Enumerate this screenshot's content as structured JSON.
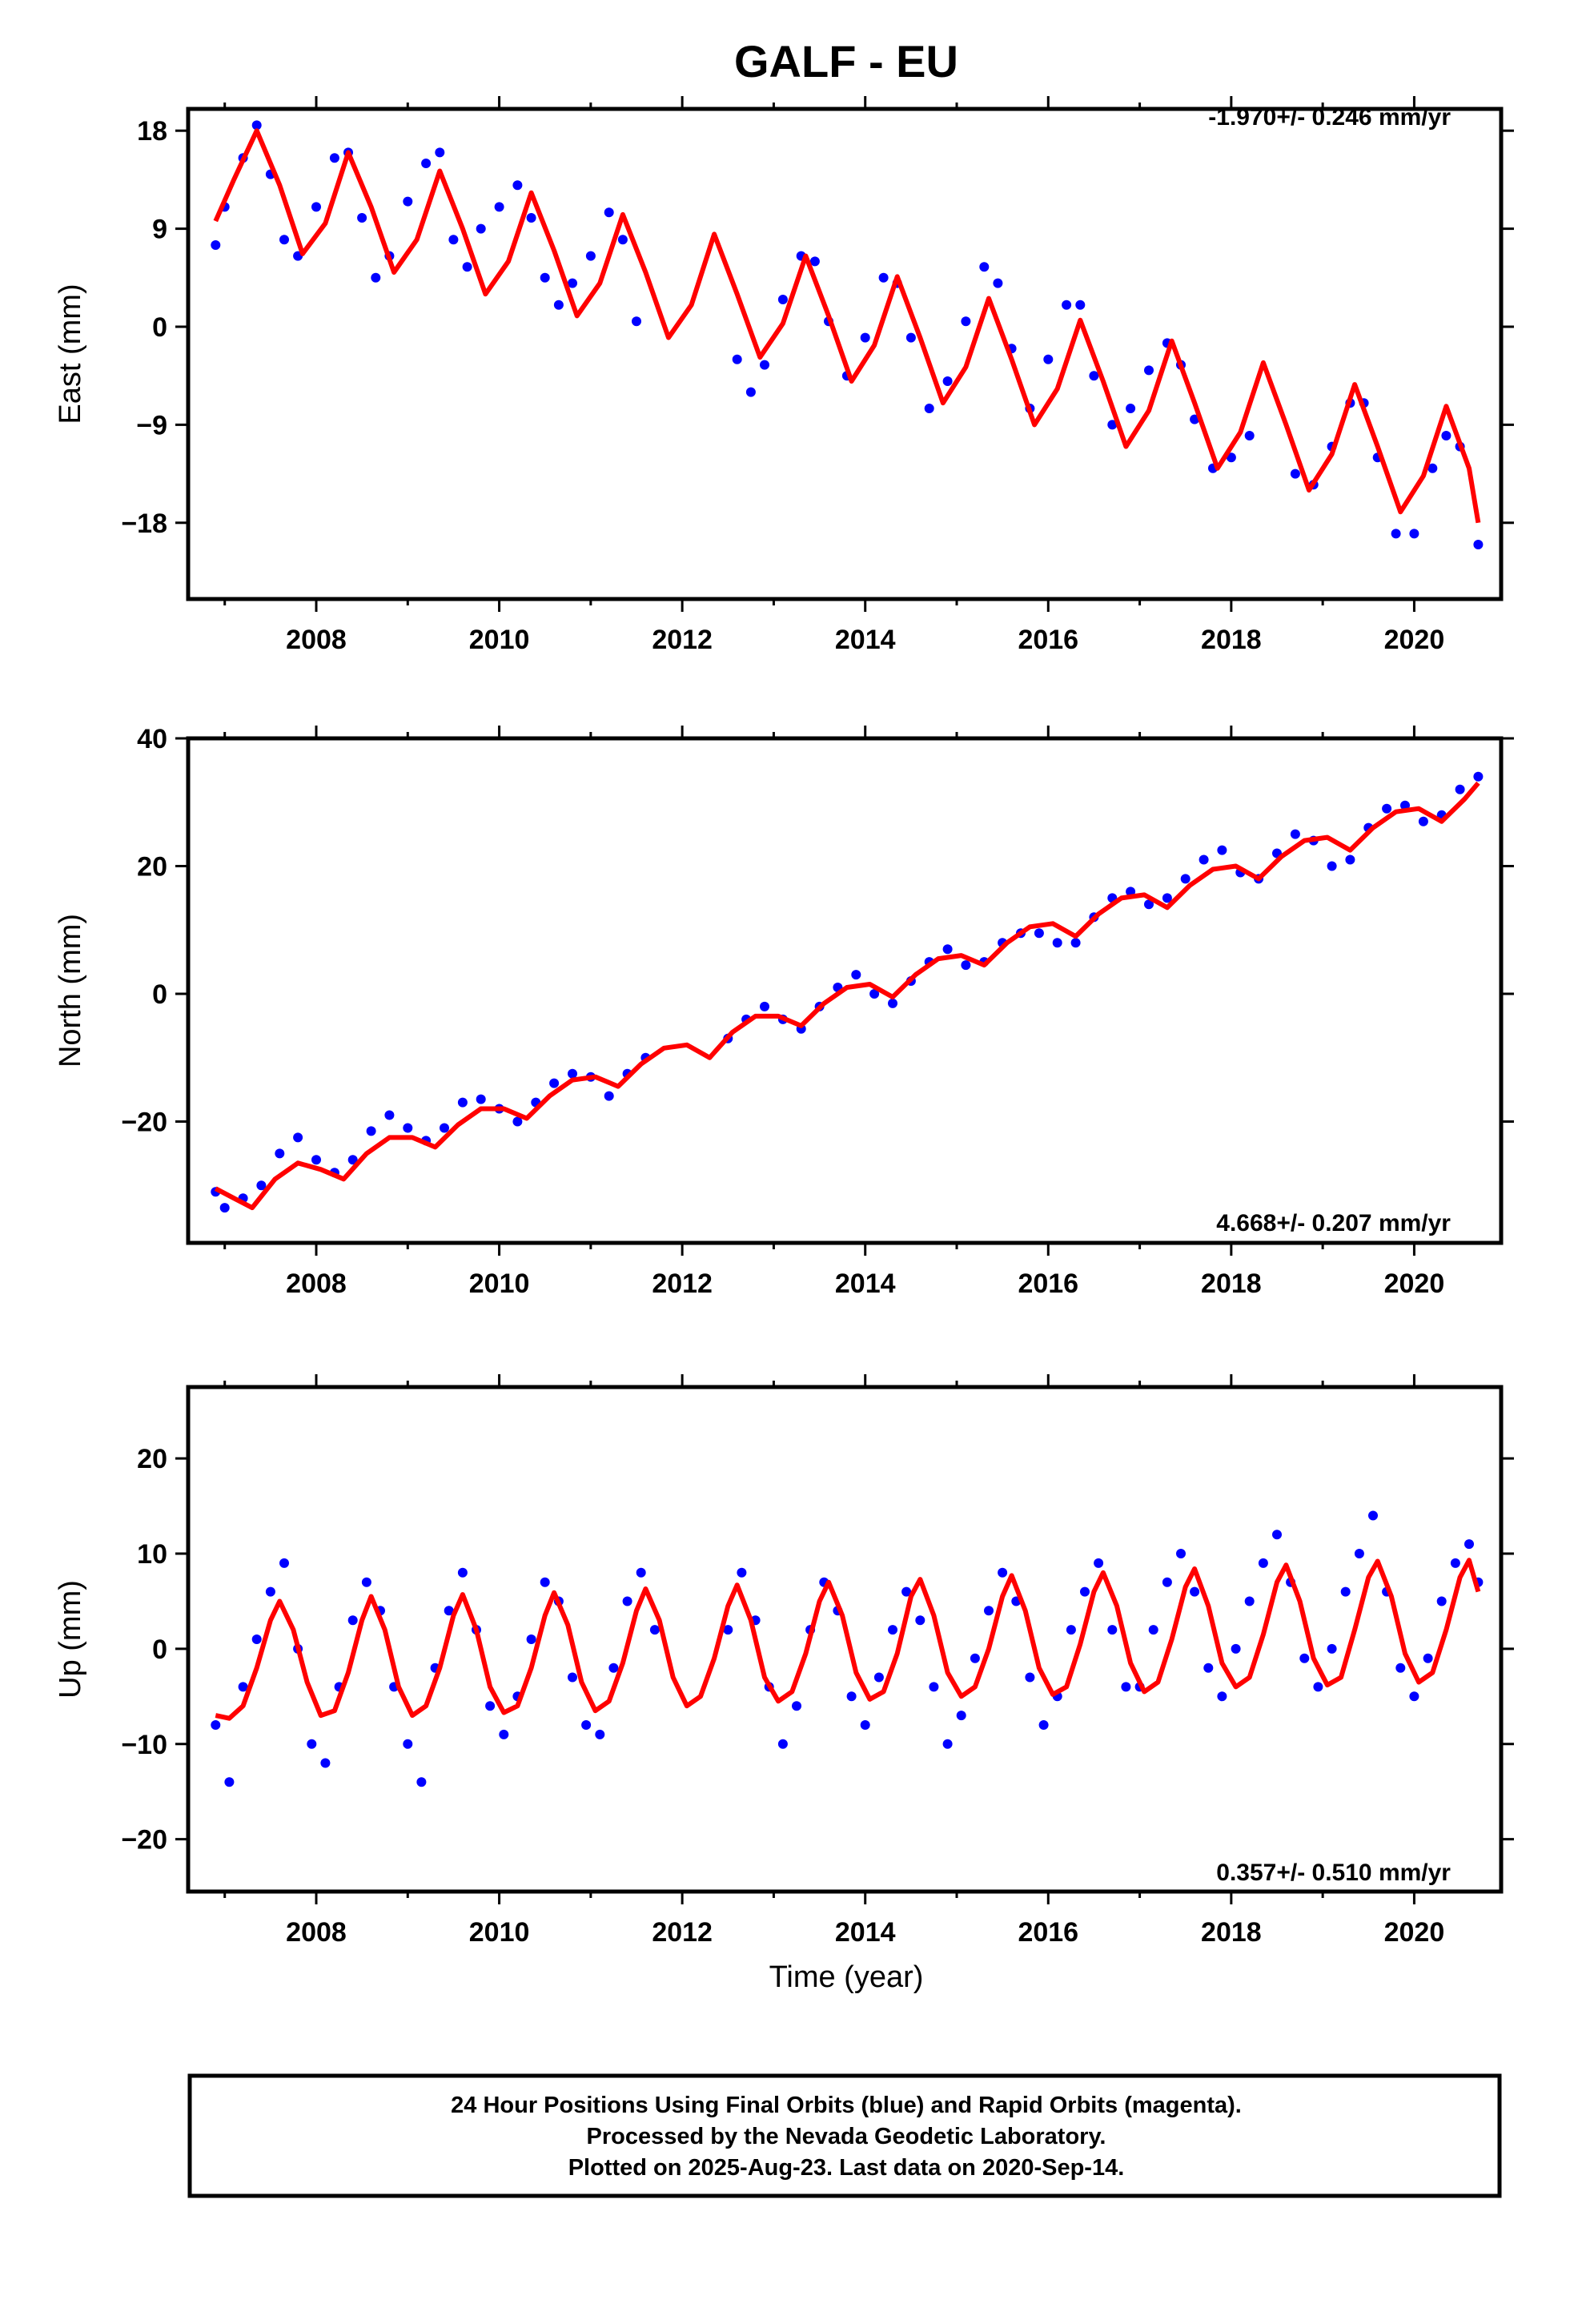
{
  "title": "GALF - EU",
  "chart_data": [
    {
      "type": "scatter",
      "panel": "east",
      "ylabel": "East (mm)",
      "xlabel": "",
      "xlim": [
        2006.6,
        2020.95
      ],
      "ylim": [
        -25,
        20
      ],
      "xticks": [
        2008,
        2010,
        2012,
        2014,
        2016,
        2018,
        2020
      ],
      "yticks": [
        18,
        9,
        0,
        -9,
        -18
      ],
      "rate_label": "-1.970+/- 0.246 mm/yr",
      "rate_position": "top-right",
      "series": [
        {
          "color": "#0000ff",
          "x": [
            2006.9,
            2007.0,
            2007.2,
            2007.35,
            2007.5,
            2007.65,
            2007.8,
            2008.0,
            2008.2,
            2008.35,
            2008.5,
            2008.65,
            2008.8,
            2009.0,
            2009.2,
            2009.35,
            2009.5,
            2009.65,
            2009.8,
            2010.0,
            2010.2,
            2010.35,
            2010.5,
            2010.65,
            2010.8,
            2011.0,
            2011.2,
            2011.35,
            2011.5,
            2012.6,
            2012.75,
            2012.9,
            2013.1,
            2013.3,
            2013.45,
            2013.6,
            2013.8,
            2014.0,
            2014.2,
            2014.35,
            2014.5,
            2014.7,
            2014.9,
            2015.1,
            2015.3,
            2015.45,
            2015.6,
            2015.8,
            2016.0,
            2016.2,
            2016.35,
            2016.5,
            2016.7,
            2016.9,
            2017.1,
            2017.3,
            2017.45,
            2017.6,
            2017.8,
            2018.0,
            2018.2,
            2018.7,
            2018.9,
            2019.1,
            2019.3,
            2019.45,
            2019.6,
            2019.8,
            2020.0,
            2020.2,
            2020.35,
            2020.5,
            2020.7
          ],
          "y": [
            7.5,
            11.0,
            15.5,
            18.5,
            14.0,
            8.0,
            6.5,
            11.0,
            15.5,
            16.0,
            10.0,
            4.5,
            6.5,
            11.5,
            15.0,
            16.0,
            8.0,
            5.5,
            9.0,
            11.0,
            13.0,
            10.0,
            4.5,
            2.0,
            4.0,
            6.5,
            10.5,
            8.0,
            0.5,
            -3.0,
            -6.0,
            -3.5,
            2.5,
            6.5,
            6.0,
            0.5,
            -4.5,
            -1.0,
            4.5,
            4.0,
            -1.0,
            -7.5,
            -5.0,
            0.5,
            5.5,
            4.0,
            -2.0,
            -7.5,
            -3.0,
            2.0,
            2.0,
            -4.5,
            -9.0,
            -7.5,
            -4.0,
            -1.5,
            -3.5,
            -8.5,
            -13.0,
            -12.0,
            -10.0,
            -13.5,
            -14.5,
            -11.0,
            -7.0,
            -7.0,
            -12.0,
            -19.0,
            -19.0,
            -13.0,
            -10.0,
            -11.0,
            -20.0
          ]
        },
        {
          "color": "#ff0000",
          "x": [
            2006.9,
            2007.1,
            2007.35,
            2007.6,
            2007.85,
            2008.1,
            2008.35,
            2008.6,
            2008.85,
            2009.1,
            2009.35,
            2009.6,
            2009.85,
            2010.1,
            2010.35,
            2010.6,
            2010.85,
            2011.1,
            2011.35,
            2011.6,
            2011.85,
            2012.1,
            2012.35,
            2012.6,
            2012.85,
            2013.1,
            2013.35,
            2013.6,
            2013.85,
            2014.1,
            2014.35,
            2014.6,
            2014.85,
            2015.1,
            2015.35,
            2015.6,
            2015.85,
            2016.1,
            2016.35,
            2016.6,
            2016.85,
            2017.1,
            2017.35,
            2017.6,
            2017.85,
            2018.1,
            2018.35,
            2018.6,
            2018.85,
            2019.1,
            2019.35,
            2019.6,
            2019.85,
            2020.1,
            2020.35,
            2020.6,
            2020.7
          ],
          "y": [
            9.7,
            13.5,
            18.0,
            13.0,
            6.7,
            9.5,
            16.0,
            11.0,
            5.0,
            8.0,
            14.3,
            9.0,
            3.0,
            6.0,
            12.3,
            7.0,
            1.0,
            4.0,
            10.3,
            5.0,
            -1.0,
            2.0,
            8.5,
            3.0,
            -2.8,
            0.3,
            6.5,
            1.0,
            -5.0,
            -1.7,
            4.6,
            -1.0,
            -7.0,
            -3.7,
            2.6,
            -3.0,
            -9.0,
            -5.7,
            0.6,
            -5.0,
            -11.0,
            -7.7,
            -1.3,
            -7.0,
            -13.0,
            -9.7,
            -3.3,
            -9.0,
            -15.0,
            -11.7,
            -5.3,
            -11.0,
            -17.0,
            -13.7,
            -7.3,
            -13.0,
            -18.0
          ]
        }
      ]
    },
    {
      "type": "scatter",
      "panel": "north",
      "ylabel": "North (mm)",
      "xlabel": "",
      "xlim": [
        2006.6,
        2020.95
      ],
      "ylim": [
        -39,
        40
      ],
      "xticks": [
        2008,
        2010,
        2012,
        2014,
        2016,
        2018,
        2020
      ],
      "yticks": [
        40,
        20,
        0,
        -20
      ],
      "rate_label": "4.668+/- 0.207 mm/yr",
      "rate_position": "bottom-right",
      "series": [
        {
          "color": "#0000ff",
          "x": [
            2006.9,
            2007.0,
            2007.2,
            2007.4,
            2007.6,
            2007.8,
            2008.0,
            2008.2,
            2008.4,
            2008.6,
            2008.8,
            2009.0,
            2009.2,
            2009.4,
            2009.6,
            2009.8,
            2010.0,
            2010.2,
            2010.4,
            2010.6,
            2010.8,
            2011.0,
            2011.2,
            2011.4,
            2011.6,
            2012.5,
            2012.7,
            2012.9,
            2013.1,
            2013.3,
            2013.5,
            2013.7,
            2013.9,
            2014.1,
            2014.3,
            2014.5,
            2014.7,
            2014.9,
            2015.1,
            2015.3,
            2015.5,
            2015.7,
            2015.9,
            2016.1,
            2016.3,
            2016.5,
            2016.7,
            2016.9,
            2017.1,
            2017.3,
            2017.5,
            2017.7,
            2017.9,
            2018.1,
            2018.3,
            2018.5,
            2018.7,
            2018.9,
            2019.1,
            2019.3,
            2019.5,
            2019.7,
            2019.9,
            2020.1,
            2020.3,
            2020.5,
            2020.7
          ],
          "y": [
            -31.0,
            -33.5,
            -32.0,
            -30.0,
            -25.0,
            -22.5,
            -26.0,
            -28.0,
            -26.0,
            -21.5,
            -19.0,
            -21.0,
            -23.0,
            -21.0,
            -17.0,
            -16.5,
            -18.0,
            -20.0,
            -17.0,
            -14.0,
            -12.5,
            -13.0,
            -16.0,
            -12.5,
            -10.0,
            -7.0,
            -4.0,
            -2.0,
            -4.0,
            -5.5,
            -2.0,
            1.0,
            3.0,
            0.0,
            -1.5,
            2.0,
            5.0,
            7.0,
            4.5,
            5.0,
            8.0,
            9.5,
            9.5,
            8.0,
            8.0,
            12.0,
            15.0,
            16.0,
            14.0,
            15.0,
            18.0,
            21.0,
            22.5,
            19.0,
            18.0,
            22.0,
            25.0,
            24.0,
            20.0,
            21.0,
            26.0,
            29.0,
            29.5,
            27.0,
            28.0,
            32.0,
            34.0
          ]
        },
        {
          "color": "#ff0000",
          "x": [
            2006.9,
            2007.1,
            2007.3,
            2007.55,
            2007.8,
            2008.05,
            2008.3,
            2008.55,
            2008.8,
            2009.05,
            2009.3,
            2009.55,
            2009.8,
            2010.05,
            2010.3,
            2010.55,
            2010.8,
            2011.05,
            2011.3,
            2011.55,
            2011.8,
            2012.05,
            2012.3,
            2012.55,
            2012.8,
            2013.05,
            2013.3,
            2013.55,
            2013.8,
            2014.05,
            2014.3,
            2014.55,
            2014.8,
            2015.05,
            2015.3,
            2015.55,
            2015.8,
            2016.05,
            2016.3,
            2016.55,
            2016.8,
            2017.05,
            2017.3,
            2017.55,
            2017.8,
            2018.05,
            2018.3,
            2018.55,
            2018.8,
            2019.05,
            2019.3,
            2019.55,
            2019.8,
            2020.05,
            2020.3,
            2020.55,
            2020.7
          ],
          "y": [
            -30.5,
            -32.0,
            -33.5,
            -29.0,
            -26.5,
            -27.5,
            -29.0,
            -25.0,
            -22.5,
            -22.5,
            -24.0,
            -20.5,
            -18.0,
            -18.0,
            -19.5,
            -16.0,
            -13.5,
            -13.0,
            -14.5,
            -11.0,
            -8.5,
            -8.0,
            -10.0,
            -6.0,
            -3.5,
            -3.5,
            -5.0,
            -1.5,
            1.0,
            1.5,
            -0.5,
            3.0,
            5.5,
            6.0,
            4.5,
            8.0,
            10.5,
            11.0,
            9.0,
            12.5,
            15.0,
            15.5,
            13.5,
            17.0,
            19.5,
            20.0,
            18.0,
            21.5,
            24.0,
            24.5,
            22.5,
            26.0,
            28.5,
            29.0,
            27.0,
            30.5,
            33.0
          ]
        }
      ]
    },
    {
      "type": "scatter",
      "panel": "up",
      "ylabel": "Up (mm)",
      "xlabel": "Time (year)",
      "xlim": [
        2006.6,
        2020.95
      ],
      "ylim": [
        -25.5,
        27.5
      ],
      "xticks": [
        2008,
        2010,
        2012,
        2014,
        2016,
        2018,
        2020
      ],
      "yticks": [
        20,
        10,
        0,
        -10,
        -20
      ],
      "rate_label": "0.357+/- 0.510 mm/yr",
      "rate_position": "bottom-right",
      "series": [
        {
          "color": "#0000ff",
          "x": [
            2006.9,
            2007.05,
            2007.2,
            2007.35,
            2007.5,
            2007.65,
            2007.8,
            2007.95,
            2008.1,
            2008.25,
            2008.4,
            2008.55,
            2008.7,
            2008.85,
            2009.0,
            2009.15,
            2009.3,
            2009.45,
            2009.6,
            2009.75,
            2009.9,
            2010.05,
            2010.2,
            2010.35,
            2010.5,
            2010.65,
            2010.8,
            2010.95,
            2011.1,
            2011.25,
            2011.4,
            2011.55,
            2011.7,
            2012.5,
            2012.65,
            2012.8,
            2012.95,
            2013.1,
            2013.25,
            2013.4,
            2013.55,
            2013.7,
            2013.85,
            2014.0,
            2014.15,
            2014.3,
            2014.45,
            2014.6,
            2014.75,
            2014.9,
            2015.05,
            2015.2,
            2015.35,
            2015.5,
            2015.65,
            2015.8,
            2015.95,
            2016.1,
            2016.25,
            2016.4,
            2016.55,
            2016.7,
            2016.85,
            2017.0,
            2017.15,
            2017.3,
            2017.45,
            2017.6,
            2017.75,
            2017.9,
            2018.05,
            2018.2,
            2018.35,
            2018.5,
            2018.65,
            2018.8,
            2018.95,
            2019.1,
            2019.25,
            2019.4,
            2019.55,
            2019.7,
            2019.85,
            2020.0,
            2020.15,
            2020.3,
            2020.45,
            2020.6,
            2020.7
          ],
          "y": [
            -8.0,
            -14.0,
            -4.0,
            1.0,
            6.0,
            9.0,
            0.0,
            -10.0,
            -12.0,
            -4.0,
            3.0,
            7.0,
            4.0,
            -4.0,
            -10.0,
            -14.0,
            -2.0,
            4.0,
            8.0,
            2.0,
            -6.0,
            -9.0,
            -5.0,
            1.0,
            7.0,
            5.0,
            -3.0,
            -8.0,
            -9.0,
            -2.0,
            5.0,
            8.0,
            2.0,
            2.0,
            8.0,
            3.0,
            -4.0,
            -10.0,
            -6.0,
            2.0,
            7.0,
            4.0,
            -5.0,
            -8.0,
            -3.0,
            2.0,
            6.0,
            3.0,
            -4.0,
            -10.0,
            -7.0,
            -1.0,
            4.0,
            8.0,
            5.0,
            -3.0,
            -8.0,
            -5.0,
            2.0,
            6.0,
            9.0,
            2.0,
            -4.0,
            -4.0,
            2.0,
            7.0,
            10.0,
            6.0,
            -2.0,
            -5.0,
            0.0,
            5.0,
            9.0,
            12.0,
            7.0,
            -1.0,
            -4.0,
            0.0,
            6.0,
            10.0,
            14.0,
            6.0,
            -2.0,
            -5.0,
            -1.0,
            5.0,
            9.0,
            11.0,
            7.0
          ]
        },
        {
          "color": "#ff0000",
          "x": [
            2006.9,
            2007.05,
            2007.2,
            2007.35,
            2007.5,
            2007.6,
            2007.75,
            2007.9,
            2008.05,
            2008.2,
            2008.35,
            2008.5,
            2008.6,
            2008.75,
            2008.9,
            2009.05,
            2009.2,
            2009.35,
            2009.5,
            2009.6,
            2009.75,
            2009.9,
            2010.05,
            2010.2,
            2010.35,
            2010.5,
            2010.6,
            2010.75,
            2010.9,
            2011.05,
            2011.2,
            2011.35,
            2011.5,
            2011.6,
            2011.75,
            2011.9,
            2012.05,
            2012.2,
            2012.35,
            2012.5,
            2012.6,
            2012.75,
            2012.9,
            2013.05,
            2013.2,
            2013.35,
            2013.5,
            2013.6,
            2013.75,
            2013.9,
            2014.05,
            2014.2,
            2014.35,
            2014.5,
            2014.6,
            2014.75,
            2014.9,
            2015.05,
            2015.2,
            2015.35,
            2015.5,
            2015.6,
            2015.75,
            2015.9,
            2016.05,
            2016.2,
            2016.35,
            2016.5,
            2016.6,
            2016.75,
            2016.9,
            2017.05,
            2017.2,
            2017.35,
            2017.5,
            2017.6,
            2017.75,
            2017.9,
            2018.05,
            2018.2,
            2018.35,
            2018.5,
            2018.6,
            2018.75,
            2018.9,
            2019.05,
            2019.2,
            2019.35,
            2019.5,
            2019.6,
            2019.75,
            2019.9,
            2020.05,
            2020.2,
            2020.35,
            2020.5,
            2020.6,
            2020.7
          ],
          "y": [
            -7.0,
            -7.3,
            -6.0,
            -2.0,
            3.0,
            5.0,
            2.0,
            -3.5,
            -7.0,
            -6.5,
            -2.5,
            3.0,
            5.5,
            2.0,
            -4.0,
            -7.0,
            -6.0,
            -2.0,
            3.5,
            5.7,
            2.0,
            -4.0,
            -6.7,
            -6.0,
            -2.0,
            3.5,
            5.9,
            2.5,
            -3.5,
            -6.5,
            -5.5,
            -1.5,
            4.0,
            6.3,
            3.0,
            -3.0,
            -6.0,
            -5.0,
            -1.0,
            4.5,
            6.7,
            3.0,
            -3.0,
            -5.5,
            -4.5,
            -0.5,
            5.0,
            7.0,
            3.5,
            -2.5,
            -5.3,
            -4.5,
            -0.5,
            5.5,
            7.3,
            3.5,
            -2.5,
            -5.0,
            -4.0,
            0.0,
            5.5,
            7.7,
            4.0,
            -2.0,
            -4.8,
            -4.0,
            0.5,
            6.0,
            8.0,
            4.5,
            -1.5,
            -4.5,
            -3.5,
            1.0,
            6.5,
            8.4,
            4.5,
            -1.5,
            -4.0,
            -3.0,
            1.5,
            7.0,
            8.8,
            5.0,
            -1.0,
            -3.8,
            -3.0,
            2.0,
            7.5,
            9.2,
            5.5,
            -0.5,
            -3.5,
            -2.5,
            2.0,
            7.5,
            9.3,
            6.0
          ]
        }
      ]
    }
  ],
  "caption": [
    "24 Hour Positions Using Final Orbits (blue) and Rapid Orbits (magenta).",
    "Processed by the Nevada Geodetic Laboratory.",
    "Plotted on 2025-Aug-23. Last data on 2020-Sep-14."
  ]
}
